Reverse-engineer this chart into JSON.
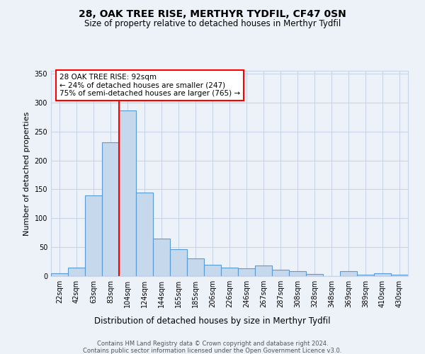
{
  "title1": "28, OAK TREE RISE, MERTHYR TYDFIL, CF47 0SN",
  "title2": "Size of property relative to detached houses in Merthyr Tydfil",
  "xlabel": "Distribution of detached houses by size in Merthyr Tydfil",
  "ylabel": "Number of detached properties",
  "bin_labels": [
    "22sqm",
    "42sqm",
    "63sqm",
    "83sqm",
    "104sqm",
    "124sqm",
    "144sqm",
    "165sqm",
    "185sqm",
    "206sqm",
    "226sqm",
    "246sqm",
    "267sqm",
    "287sqm",
    "308sqm",
    "328sqm",
    "348sqm",
    "369sqm",
    "389sqm",
    "410sqm",
    "430sqm"
  ],
  "bar_values": [
    5,
    15,
    140,
    231,
    287,
    145,
    65,
    46,
    31,
    20,
    15,
    14,
    18,
    11,
    9,
    4,
    0,
    9,
    3,
    5,
    2
  ],
  "bar_color": "#c5d8ec",
  "bar_edge_color": "#5b9bd5",
  "annotation_title": "28 OAK TREE RISE: 92sqm",
  "annotation_line1": "← 24% of detached houses are smaller (247)",
  "annotation_line2": "75% of semi-detached houses are larger (765) →",
  "ylim": [
    0,
    355
  ],
  "yticks": [
    0,
    50,
    100,
    150,
    200,
    250,
    300,
    350
  ],
  "footer1": "Contains HM Land Registry data © Crown copyright and database right 2024.",
  "footer2": "Contains public sector information licensed under the Open Government Licence v3.0.",
  "bg_color": "#edf2f9",
  "grid_color": "#c8d4e8",
  "title1_fontsize": 10,
  "title2_fontsize": 8.5,
  "ylabel_fontsize": 8,
  "xlabel_fontsize": 8.5,
  "tick_fontsize": 7,
  "footer_fontsize": 6
}
